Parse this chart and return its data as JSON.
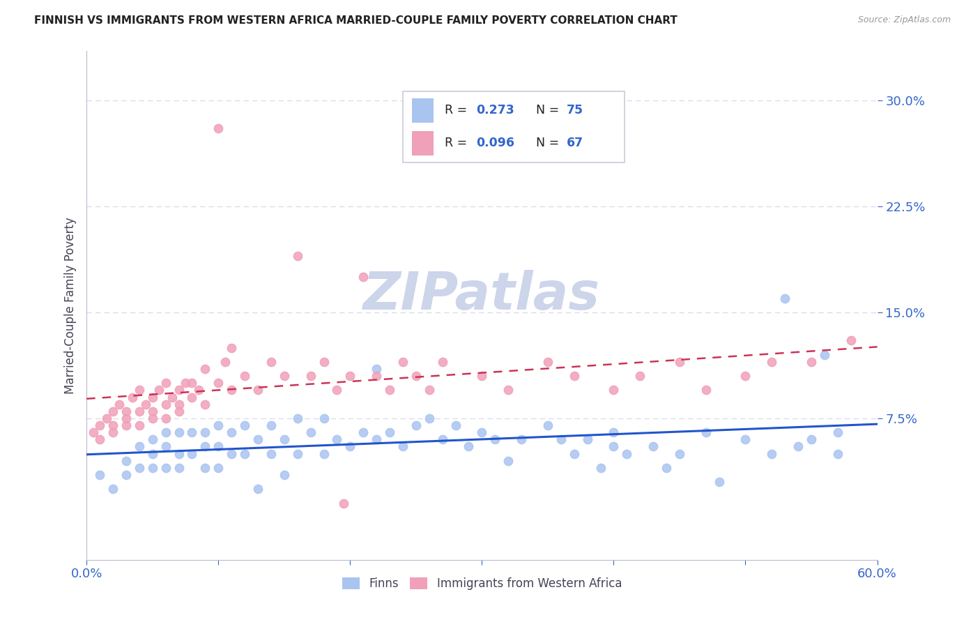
{
  "title": "FINNISH VS IMMIGRANTS FROM WESTERN AFRICA MARRIED-COUPLE FAMILY POVERTY CORRELATION CHART",
  "source": "Source: ZipAtlas.com",
  "ylabel": "Married-Couple Family Poverty",
  "xlim": [
    0.0,
    0.6
  ],
  "ylim": [
    -0.025,
    0.335
  ],
  "yticks": [
    0.075,
    0.15,
    0.225,
    0.3
  ],
  "ytick_labels": [
    "7.5%",
    "15.0%",
    "22.5%",
    "30.0%"
  ],
  "xticks": [
    0.0,
    0.1,
    0.2,
    0.3,
    0.4,
    0.5,
    0.6
  ],
  "series1_name": "Finns",
  "series1_color": "#aac4f0",
  "series2_name": "Immigrants from Western Africa",
  "series2_color": "#f0a0b8",
  "trend1_color": "#2255cc",
  "trend2_color": "#cc3355",
  "trend2_linestyle": "dashed",
  "background_color": "#ffffff",
  "grid_color": "#d8dce8",
  "title_color": "#222222",
  "axis_tick_color": "#3366cc",
  "ylabel_color": "#444455",
  "legend_color_R": "#3366cc",
  "legend_color_N": "#3366cc",
  "legend_color_text": "#222222",
  "watermark_color": "#ccd5ea",
  "source_color": "#999999",
  "finns_x": [
    0.01,
    0.02,
    0.03,
    0.03,
    0.04,
    0.04,
    0.05,
    0.05,
    0.05,
    0.06,
    0.06,
    0.06,
    0.07,
    0.07,
    0.07,
    0.08,
    0.08,
    0.09,
    0.09,
    0.09,
    0.1,
    0.1,
    0.1,
    0.11,
    0.11,
    0.12,
    0.12,
    0.13,
    0.13,
    0.14,
    0.14,
    0.15,
    0.15,
    0.16,
    0.16,
    0.17,
    0.18,
    0.18,
    0.19,
    0.2,
    0.21,
    0.22,
    0.22,
    0.23,
    0.24,
    0.25,
    0.26,
    0.27,
    0.28,
    0.29,
    0.3,
    0.31,
    0.32,
    0.33,
    0.35,
    0.36,
    0.37,
    0.38,
    0.39,
    0.4,
    0.4,
    0.41,
    0.43,
    0.44,
    0.45,
    0.47,
    0.48,
    0.5,
    0.52,
    0.53,
    0.54,
    0.55,
    0.56,
    0.57,
    0.57
  ],
  "finns_y": [
    0.035,
    0.025,
    0.045,
    0.035,
    0.04,
    0.055,
    0.05,
    0.04,
    0.06,
    0.04,
    0.055,
    0.065,
    0.05,
    0.04,
    0.065,
    0.05,
    0.065,
    0.04,
    0.055,
    0.065,
    0.04,
    0.055,
    0.07,
    0.05,
    0.065,
    0.05,
    0.07,
    0.06,
    0.025,
    0.05,
    0.07,
    0.06,
    0.035,
    0.05,
    0.075,
    0.065,
    0.05,
    0.075,
    0.06,
    0.055,
    0.065,
    0.06,
    0.11,
    0.065,
    0.055,
    0.07,
    0.075,
    0.06,
    0.07,
    0.055,
    0.065,
    0.06,
    0.045,
    0.06,
    0.07,
    0.06,
    0.05,
    0.06,
    0.04,
    0.055,
    0.065,
    0.05,
    0.055,
    0.04,
    0.05,
    0.065,
    0.03,
    0.06,
    0.05,
    0.16,
    0.055,
    0.06,
    0.12,
    0.05,
    0.065
  ],
  "immigrants_x": [
    0.005,
    0.01,
    0.01,
    0.015,
    0.02,
    0.02,
    0.02,
    0.025,
    0.03,
    0.03,
    0.03,
    0.035,
    0.04,
    0.04,
    0.04,
    0.045,
    0.05,
    0.05,
    0.05,
    0.055,
    0.06,
    0.06,
    0.06,
    0.065,
    0.07,
    0.07,
    0.07,
    0.075,
    0.08,
    0.08,
    0.085,
    0.09,
    0.09,
    0.1,
    0.1,
    0.105,
    0.11,
    0.11,
    0.12,
    0.13,
    0.14,
    0.15,
    0.16,
    0.17,
    0.18,
    0.19,
    0.2,
    0.21,
    0.22,
    0.23,
    0.24,
    0.25,
    0.26,
    0.27,
    0.195,
    0.3,
    0.32,
    0.35,
    0.37,
    0.4,
    0.42,
    0.45,
    0.47,
    0.5,
    0.52,
    0.55,
    0.58
  ],
  "immigrants_y": [
    0.065,
    0.07,
    0.06,
    0.075,
    0.065,
    0.08,
    0.07,
    0.085,
    0.07,
    0.08,
    0.075,
    0.09,
    0.08,
    0.07,
    0.095,
    0.085,
    0.075,
    0.09,
    0.08,
    0.095,
    0.085,
    0.075,
    0.1,
    0.09,
    0.08,
    0.095,
    0.085,
    0.1,
    0.09,
    0.1,
    0.095,
    0.085,
    0.11,
    0.28,
    0.1,
    0.115,
    0.095,
    0.125,
    0.105,
    0.095,
    0.115,
    0.105,
    0.19,
    0.105,
    0.115,
    0.095,
    0.105,
    0.175,
    0.105,
    0.095,
    0.115,
    0.105,
    0.095,
    0.115,
    0.015,
    0.105,
    0.095,
    0.115,
    0.105,
    0.095,
    0.105,
    0.115,
    0.095,
    0.105,
    0.115,
    0.115,
    0.13
  ]
}
